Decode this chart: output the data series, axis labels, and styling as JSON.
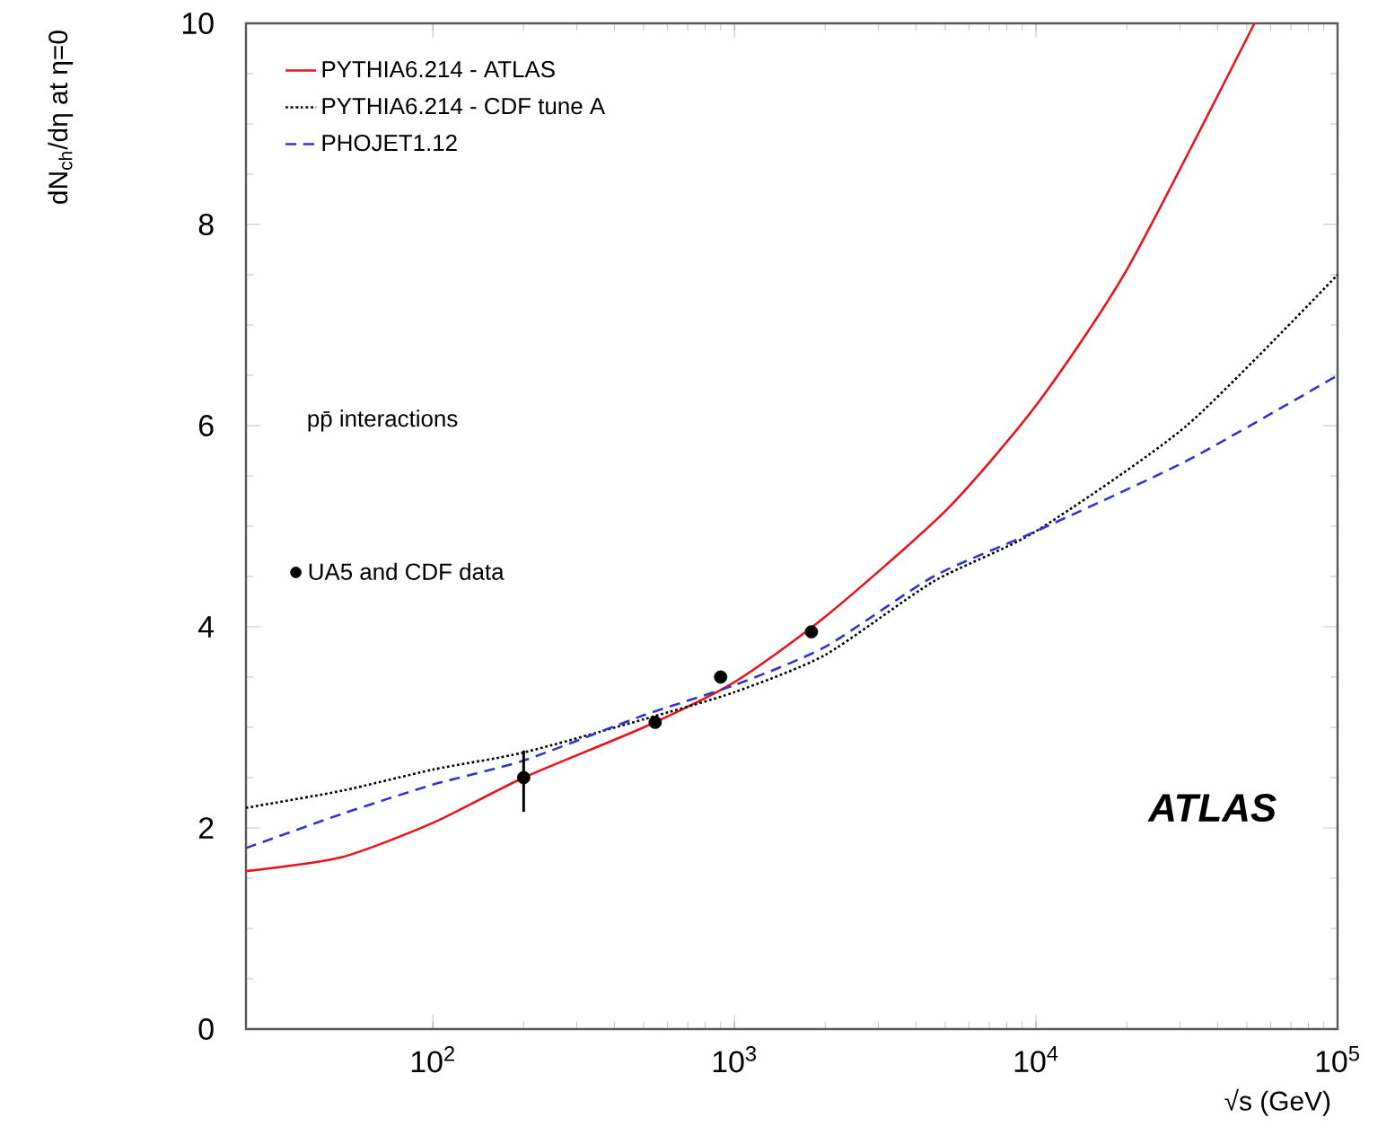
{
  "chart_data": {
    "type": "line",
    "xlabel": "√s (GeV)",
    "ylabel": "dN$_{ch}$/dη at η=0",
    "annotations": [
      "pp̄ interactions",
      "ATLAS"
    ],
    "log": "x",
    "legend": "top left",
    "xlim": [
      24,
      100000
    ],
    "ylim": [
      0,
      10
    ],
    "xticks": [
      {
        "value": 100,
        "label": "10$^{2}$"
      },
      {
        "value": 1000,
        "label": "10$^{3}$"
      },
      {
        "value": 10000,
        "label": "10$^{4}$"
      },
      {
        "value": 100000,
        "label": "10$^{5}$"
      }
    ],
    "yticks": [
      0,
      2,
      4,
      6,
      8,
      10
    ],
    "series": [
      {
        "name": "PYTHIA6.214 - ATLAS",
        "color": "#e8141c",
        "line_style": "solid",
        "x": [
          24,
          50,
          100,
          200,
          500,
          1000,
          2000,
          5000,
          10000,
          20000,
          53000
        ],
        "values": [
          1.57,
          1.71,
          2.05,
          2.5,
          3.0,
          3.45,
          4.1,
          5.15,
          6.2,
          7.55,
          10
        ]
      },
      {
        "name": "PYTHIA6.214 - CDF tune A",
        "color": "#000000",
        "line_style": "dotted",
        "x": [
          24,
          50,
          100,
          200,
          500,
          1000,
          2000,
          4570,
          10000,
          31600,
          100000
        ],
        "values": [
          2.2,
          2.37,
          2.58,
          2.75,
          3.08,
          3.35,
          3.72,
          4.45,
          4.95,
          6.0,
          7.5
        ]
      },
      {
        "name": "PHOJET1.12",
        "color": "#3333cc",
        "line_style": "dashed",
        "x": [
          24,
          50,
          100,
          200,
          500,
          1000,
          2000,
          4570,
          10000,
          31600,
          100000
        ],
        "values": [
          1.8,
          2.14,
          2.43,
          2.67,
          3.12,
          3.42,
          3.8,
          4.5,
          4.95,
          5.65,
          6.5
        ]
      },
      {
        "name": "UA5 and CDF data",
        "type": "scatter",
        "marker": "circle",
        "color": "#000000",
        "x": [
          200,
          546,
          900,
          1800
        ],
        "values": [
          2.5,
          3.05,
          3.5,
          3.95
        ],
        "errors": [
          [
            2.16,
            2.77
          ],
          null,
          null,
          null
        ]
      }
    ]
  }
}
